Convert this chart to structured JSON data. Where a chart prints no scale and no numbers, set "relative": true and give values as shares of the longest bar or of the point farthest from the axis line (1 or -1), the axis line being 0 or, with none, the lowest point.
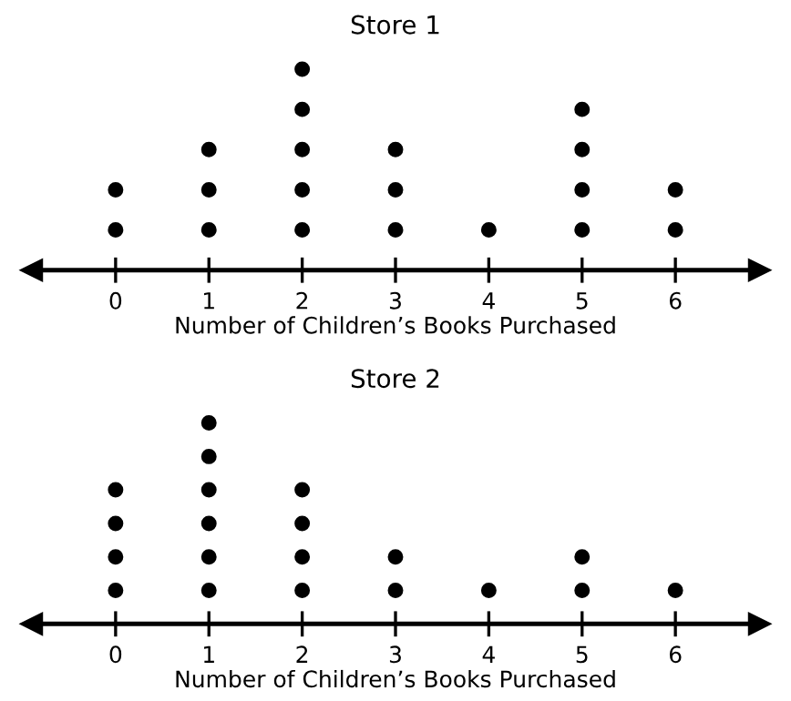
{
  "chart_data": [
    {
      "type": "scatter",
      "title": "Store 1",
      "xlabel": "Number of Children’s Books Purchased",
      "x": [
        0,
        0,
        1,
        1,
        1,
        2,
        2,
        2,
        2,
        2,
        3,
        3,
        3,
        4,
        5,
        5,
        5,
        5,
        6,
        6
      ],
      "values": [
        0.2,
        0.4,
        0.2,
        0.4,
        0.6,
        0.2,
        0.4,
        0.6,
        0.8,
        1,
        0.2,
        0.4,
        0.6,
        0.2,
        0.2,
        0.4,
        0.6,
        0.8,
        0.2,
        0.4
      ],
      "relative": true,
      "color": "#000000",
      "marker": "circle",
      "xlim": [
        -0.9,
        6.9
      ],
      "xticks": [
        0,
        1,
        2,
        3,
        4,
        5,
        6
      ],
      "tick_labels": "x"
    },
    {
      "type": "scatter",
      "title": "Store 2",
      "xlabel": "Number of Children’s Books Purchased",
      "x": [
        0,
        0,
        0,
        0,
        1,
        1,
        1,
        1,
        1,
        1,
        2,
        2,
        2,
        2,
        3,
        3,
        4,
        5,
        5,
        6
      ],
      "values": [
        0.167,
        0.333,
        0.5,
        0.667,
        0.167,
        0.333,
        0.5,
        0.667,
        0.833,
        1,
        0.167,
        0.333,
        0.5,
        0.667,
        0.167,
        0.333,
        0.167,
        0.167,
        0.333,
        0.167
      ],
      "relative": true,
      "color": "#000000",
      "marker": "circle",
      "xlim": [
        -0.9,
        6.9
      ],
      "xticks": [
        0,
        1,
        2,
        3,
        4,
        5,
        6
      ],
      "tick_labels": "x"
    }
  ]
}
